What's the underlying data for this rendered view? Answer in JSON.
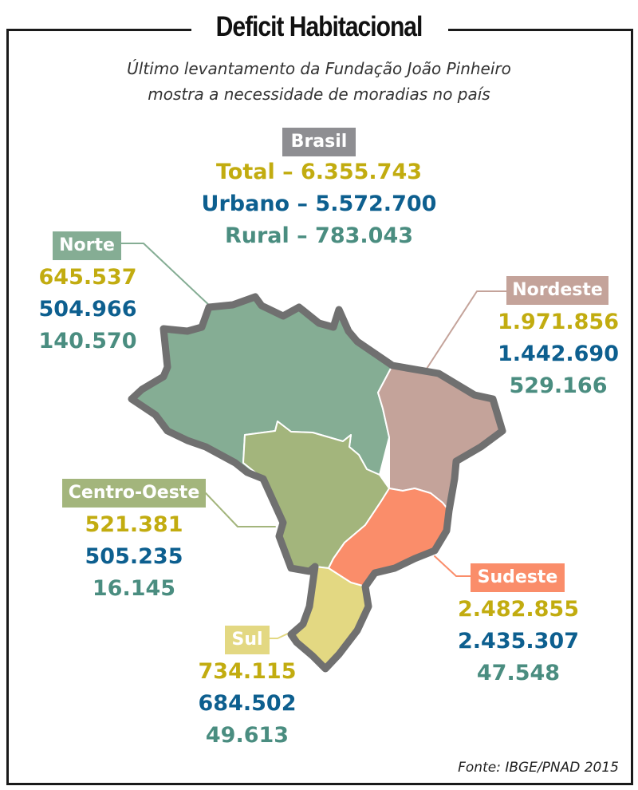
{
  "title": "Deficit Habitacional",
  "subtitle": {
    "line1": "Último levantamento da Fundação João Pinheiro",
    "line2": "mostra a necessidade de moradias no país"
  },
  "brasil": {
    "label": "Brasil",
    "total": "Total – 6.355.743",
    "urbano": "Urbano – 5.572.700",
    "rural": "Rural – 783.043"
  },
  "regions": {
    "norte": {
      "label": "Norte",
      "total": "645.537",
      "urbano": "504.966",
      "rural": "140.570"
    },
    "nordeste": {
      "label": "Nordeste",
      "total": "1.971.856",
      "urbano": "1.442.690",
      "rural": "529.166"
    },
    "centro_oeste": {
      "label": "Centro-Oeste",
      "total": "521.381",
      "urbano": "505.235",
      "rural": "16.145"
    },
    "sudeste": {
      "label": "Sudeste",
      "total": "2.482.855",
      "urbano": "2.435.307",
      "rural": "47.548"
    },
    "sul": {
      "label": "Sul",
      "total": "734.115",
      "urbano": "684.502",
      "rural": "49.613"
    }
  },
  "source": "Fonte: IBGE/PNAD 2015",
  "colors": {
    "total": "#c2ac10",
    "urbano": "#0d5f8f",
    "rural": "#4a8d80",
    "brasil_label": "#8e8e92",
    "norte": "#85ad94",
    "nordeste": "#c4a39a",
    "centro_oeste": "#a3b57c",
    "sudeste": "#fa8d6a",
    "sul": "#e3d882",
    "border": "#707070"
  }
}
